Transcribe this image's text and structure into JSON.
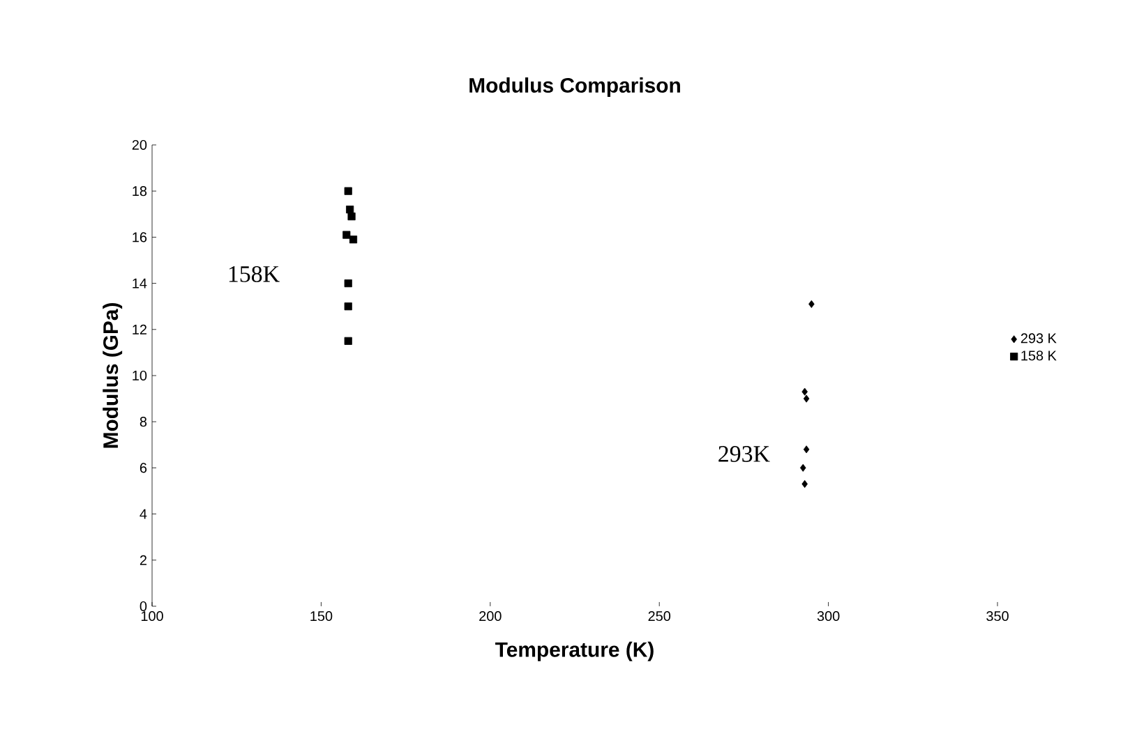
{
  "chart_data": {
    "type": "scatter",
    "title": "Modulus Comparison",
    "xlabel": "Temperature (K)",
    "ylabel": "Modulus (GPa)",
    "series": [
      {
        "name": "293 K",
        "color": "#000000",
        "marker": "diamond",
        "x": [
          295,
          293,
          293.5,
          293.5,
          292.5,
          293
        ],
        "values": [
          13.1,
          9.3,
          9.0,
          6.8,
          6.0,
          5.3
        ]
      },
      {
        "name": "158 K",
        "color": "#000000",
        "marker": "square",
        "x": [
          158,
          158.5,
          159,
          157.5,
          159.5,
          158,
          158,
          158
        ],
        "values": [
          18.0,
          17.2,
          16.9,
          16.1,
          15.9,
          14.0,
          13.0,
          11.5
        ]
      }
    ],
    "annotations": [
      "158K",
      "293K"
    ],
    "xlim": [
      100,
      350
    ],
    "ylim": [
      0,
      20
    ],
    "xticks": [
      100,
      150,
      200,
      250,
      300,
      350
    ],
    "yticks": [
      0,
      2,
      4,
      6,
      8,
      10,
      12,
      14,
      16,
      18,
      20
    ],
    "grid": false,
    "legend": "right"
  }
}
